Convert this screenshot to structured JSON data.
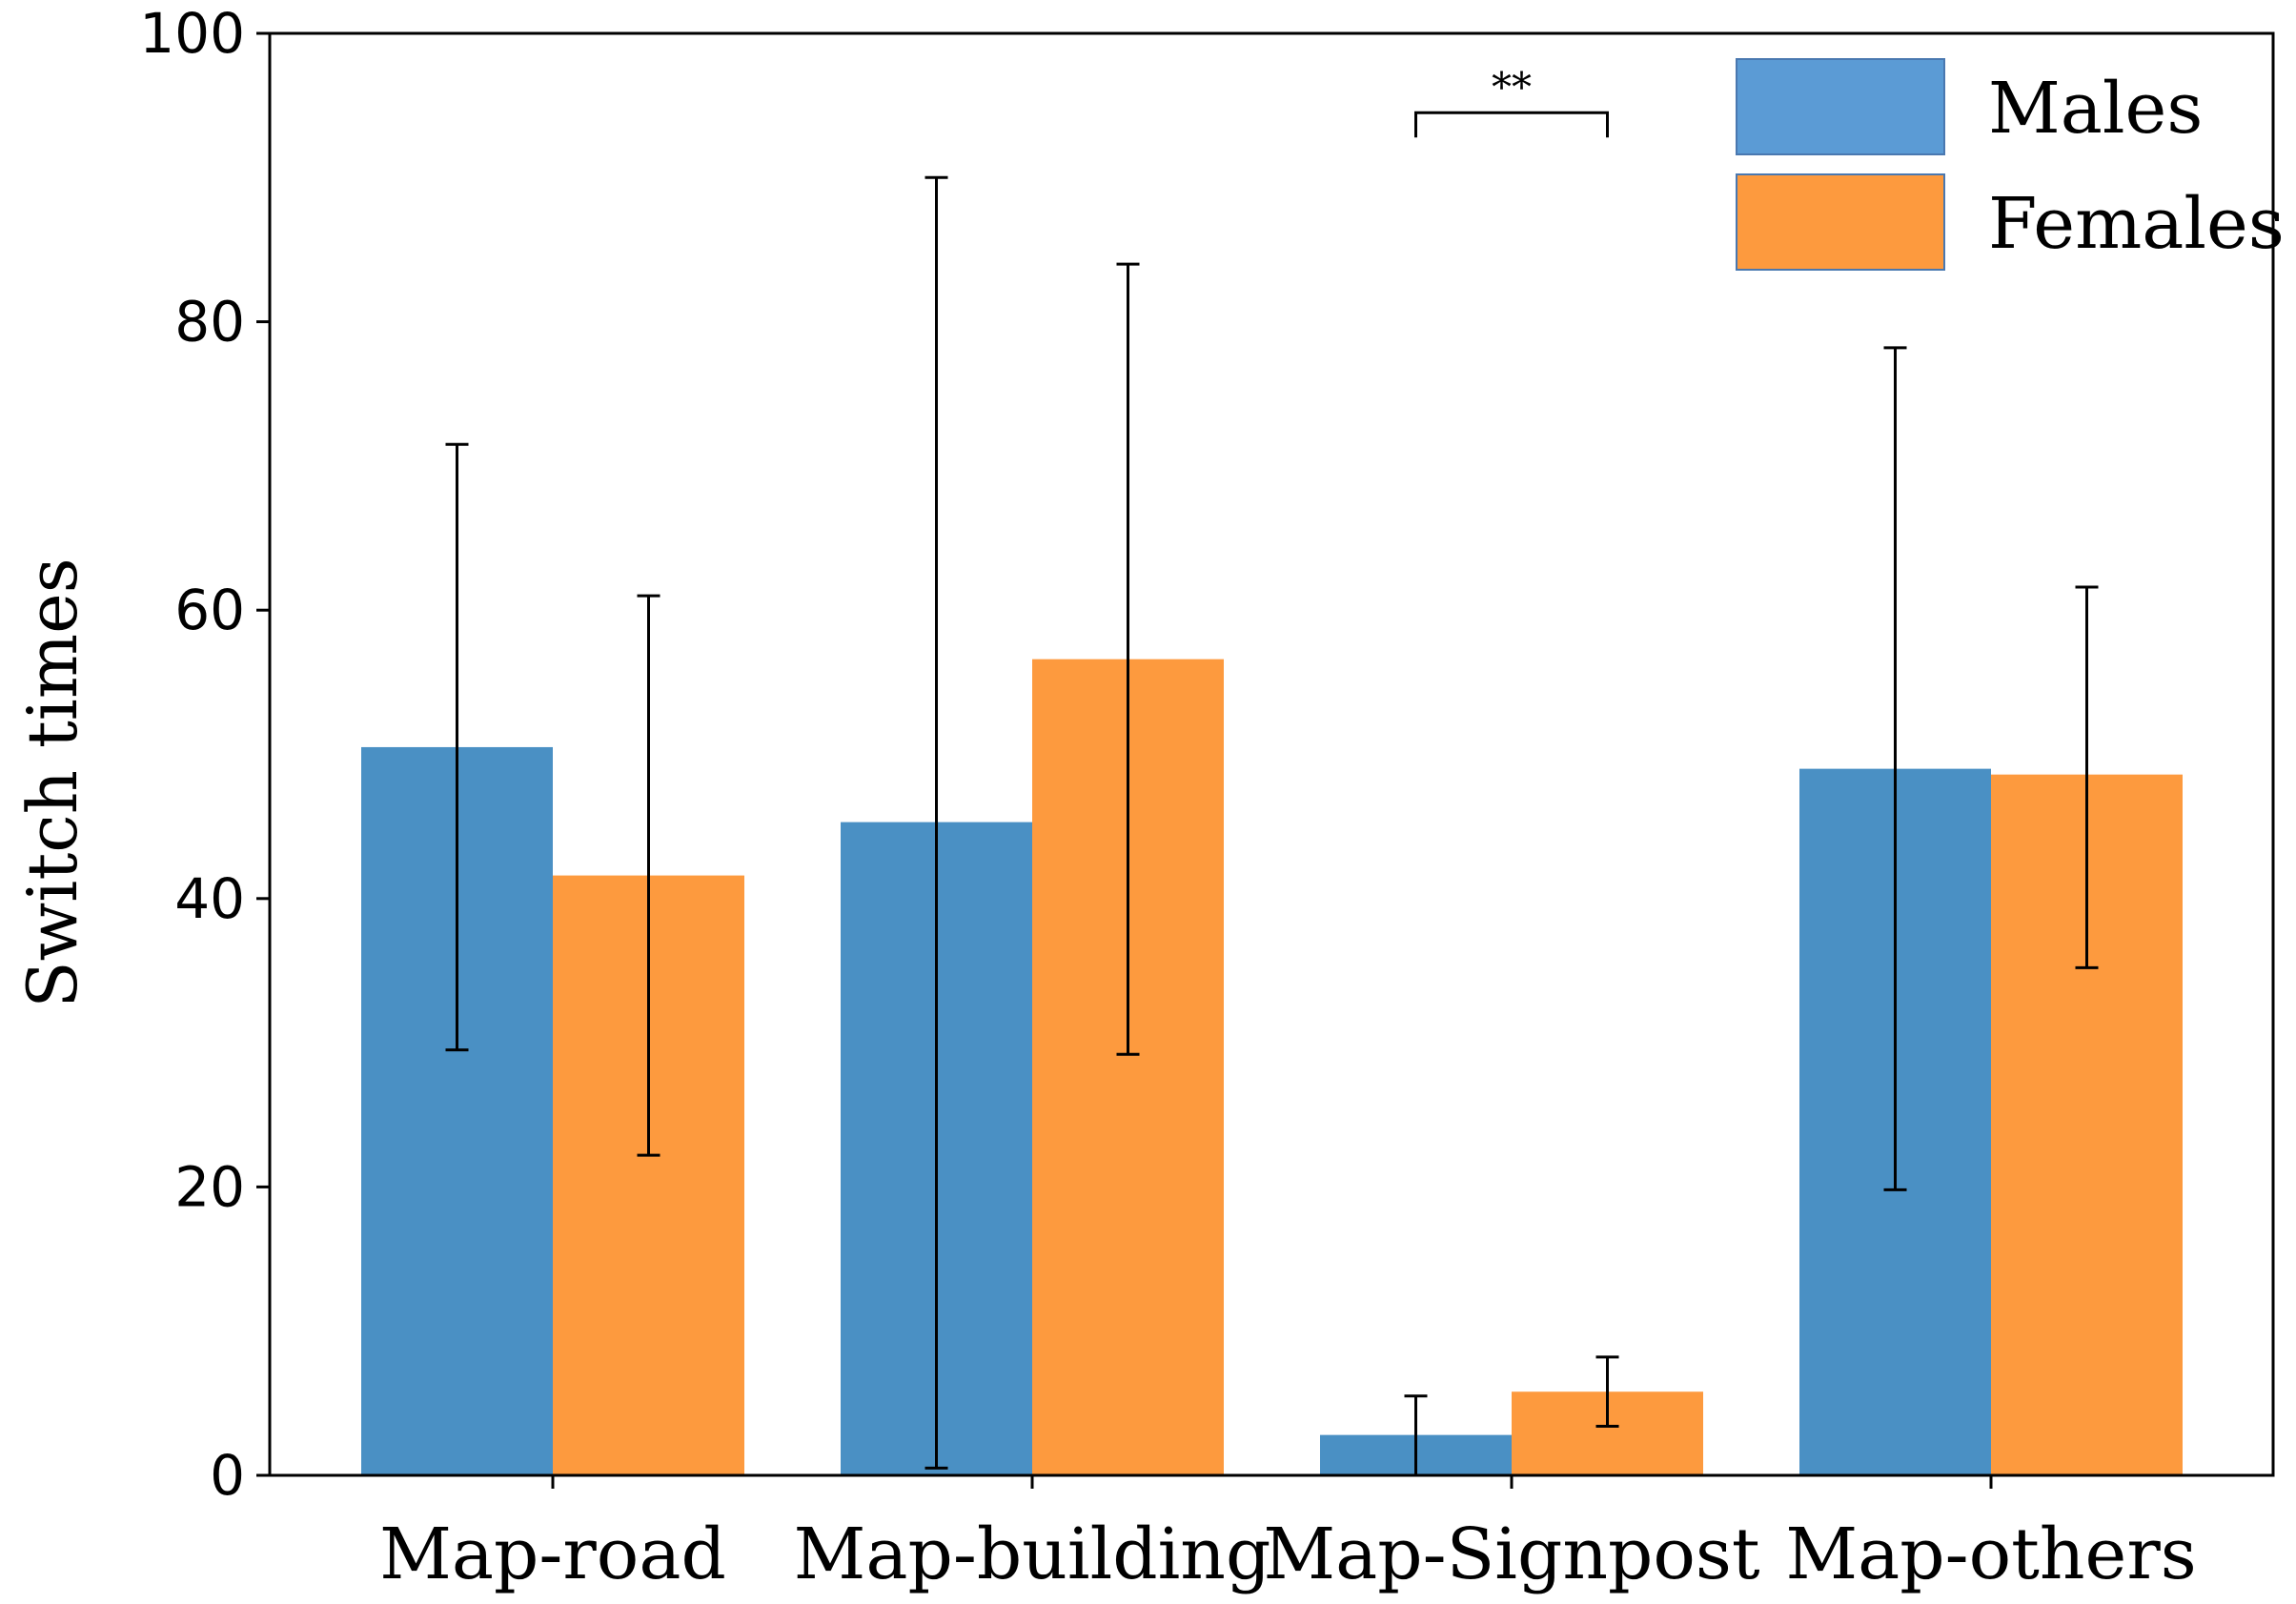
{
  "chart_data": {
    "type": "bar",
    "title": "",
    "xlabel": "",
    "ylabel": "Switch times",
    "ylim": [
      0,
      100
    ],
    "yticks": [
      0,
      20,
      40,
      60,
      80,
      100
    ],
    "grid": false,
    "legend_position": "top-right",
    "categories": [
      "Map-road",
      "Map-building",
      "Map-Signpost",
      "Map-others"
    ],
    "series": [
      {
        "name": "Males",
        "color": "#4a90c4",
        "legend_color": "#5b9bd5",
        "values": [
          50.5,
          45.3,
          2.8,
          49.0
        ],
        "error_low": [
          29.5,
          0.5,
          0.0,
          19.8
        ],
        "error_high": [
          71.5,
          90.0,
          5.5,
          78.2
        ]
      },
      {
        "name": "Females",
        "color": "#fd9a3e",
        "legend_color": "#fd9a3e",
        "values": [
          41.6,
          56.6,
          5.8,
          48.6
        ],
        "error_low": [
          22.2,
          29.2,
          3.4,
          35.2
        ],
        "error_high": [
          61.0,
          84.0,
          8.2,
          61.6
        ]
      }
    ],
    "annotations": [
      {
        "text": "**",
        "category_index": 2,
        "y_level": 94.5
      }
    ]
  }
}
